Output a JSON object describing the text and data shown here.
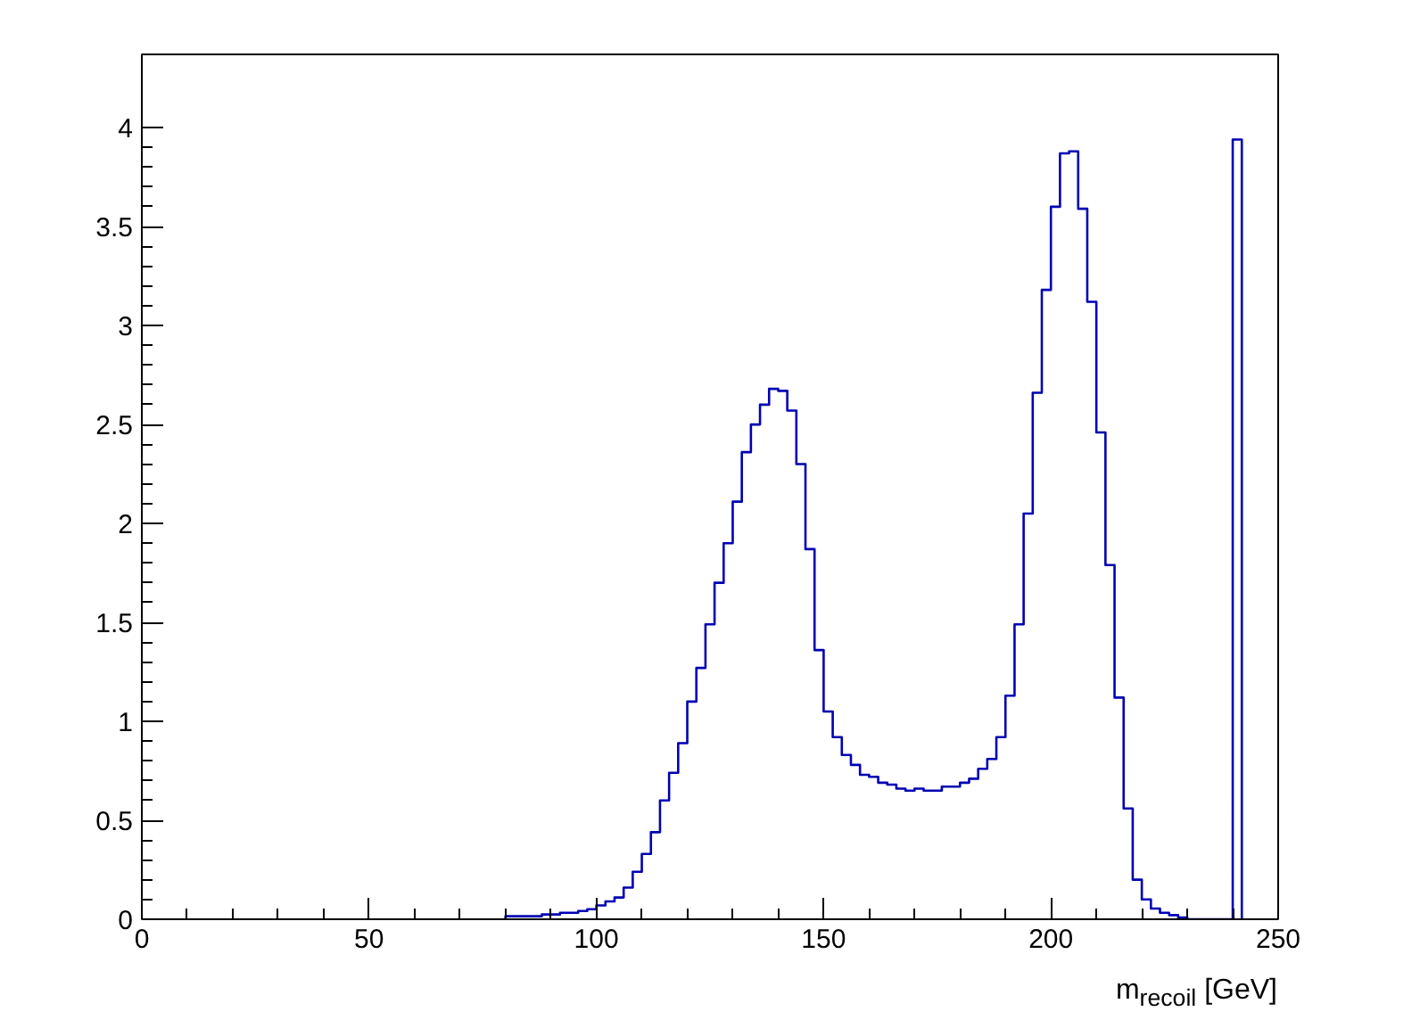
{
  "chart_data": {
    "type": "histogram",
    "xlabel": "m$_{recoil}$ [GeV]",
    "bins": [
      80,
      82,
      84,
      86,
      88,
      90,
      92,
      94,
      96,
      98,
      100,
      102,
      104,
      106,
      108,
      110,
      112,
      114,
      116,
      118,
      120,
      122,
      124,
      126,
      128,
      130,
      132,
      134,
      136,
      138,
      140,
      142,
      144,
      146,
      148,
      150,
      152,
      154,
      156,
      158,
      160,
      162,
      164,
      166,
      168,
      170,
      172,
      174,
      176,
      178,
      180,
      182,
      184,
      186,
      188,
      190,
      192,
      194,
      196,
      198,
      200,
      202,
      204,
      206,
      208,
      210,
      212,
      214,
      216,
      218,
      220,
      222,
      224,
      226,
      228,
      230,
      232,
      234,
      236,
      238,
      240,
      242
    ],
    "values": [
      0.015,
      0.015,
      0.015,
      0.015,
      0.024,
      0.024,
      0.033,
      0.033,
      0.042,
      0.051,
      0.07,
      0.09,
      0.11,
      0.16,
      0.24,
      0.33,
      0.44,
      0.6,
      0.74,
      0.89,
      1.1,
      1.27,
      1.49,
      1.7,
      1.9,
      2.11,
      2.36,
      2.5,
      2.6,
      2.68,
      2.67,
      2.57,
      2.3,
      1.87,
      1.36,
      1.05,
      0.92,
      0.83,
      0.78,
      0.73,
      0.72,
      0.69,
      0.68,
      0.66,
      0.65,
      0.66,
      0.65,
      0.65,
      0.67,
      0.67,
      0.69,
      0.71,
      0.76,
      0.81,
      0.92,
      1.13,
      1.49,
      2.05,
      2.66,
      3.18,
      3.6,
      3.87,
      3.88,
      3.59,
      3.12,
      2.46,
      1.79,
      1.12,
      0.56,
      0.2,
      0.1,
      0.054,
      0.033,
      0.021,
      0.009,
      0,
      0,
      0,
      0,
      0,
      3.94
    ],
    "color": "#0000b4",
    "xlim": [
      0,
      250
    ],
    "xticks": [
      0,
      50,
      100,
      150,
      200,
      250
    ],
    "ylim": [
      0,
      4.37
    ],
    "yticks": [
      0,
      0.5,
      1,
      1.5,
      2,
      2.5,
      3,
      3.5,
      4
    ]
  }
}
